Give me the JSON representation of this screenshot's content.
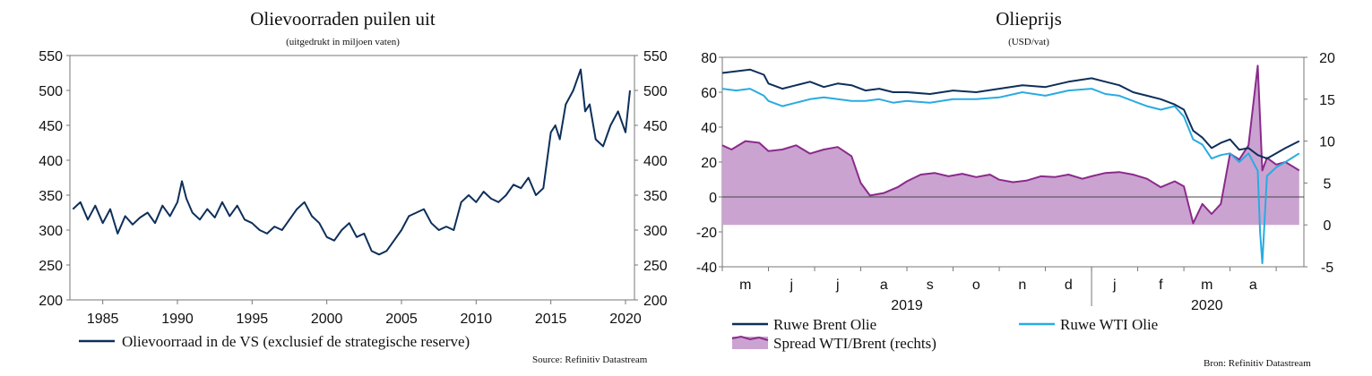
{
  "chart_data": [
    {
      "type": "line",
      "title": "Olievoorraden puilen uit",
      "subtitle": "(uitgedrukt in miljoen vaten)",
      "ylim": [
        200,
        550
      ],
      "y_ticks": [
        200,
        250,
        300,
        350,
        400,
        450,
        500,
        550
      ],
      "x_ticks": [
        "1985",
        "1990",
        "1995",
        "2000",
        "2005",
        "2010",
        "2015",
        "2020"
      ],
      "xlim": [
        1982.8,
        2020.6
      ],
      "series": [
        {
          "name": "Olievoorraad in de VS (exclusief de strategische reserve)",
          "color": "#0d2f5a",
          "x": [
            1983,
            1983.5,
            1984,
            1984.5,
            1985,
            1985.5,
            1986,
            1986.5,
            1987,
            1987.5,
            1988,
            1988.5,
            1989,
            1989.5,
            1990,
            1990.3,
            1990.6,
            1991,
            1991.5,
            1992,
            1992.5,
            1993,
            1993.5,
            1994,
            1994.5,
            1995,
            1995.5,
            1996,
            1996.5,
            1997,
            1997.5,
            1998,
            1998.5,
            1999,
            1999.5,
            2000,
            2000.5,
            2001,
            2001.5,
            2002,
            2002.5,
            2003,
            2003.5,
            2004,
            2004.5,
            2005,
            2005.5,
            2006,
            2006.5,
            2007,
            2007.5,
            2008,
            2008.5,
            2009,
            2009.5,
            2010,
            2010.5,
            2011,
            2011.5,
            2012,
            2012.5,
            2013,
            2013.5,
            2014,
            2014.5,
            2015,
            2015.3,
            2015.6,
            2016,
            2016.5,
            2017,
            2017.3,
            2017.6,
            2018,
            2018.5,
            2019,
            2019.5,
            2020,
            2020.3
          ],
          "values": [
            330,
            340,
            315,
            335,
            310,
            330,
            295,
            320,
            308,
            318,
            325,
            310,
            335,
            320,
            340,
            370,
            345,
            325,
            315,
            330,
            318,
            340,
            320,
            335,
            315,
            310,
            300,
            295,
            305,
            300,
            315,
            330,
            340,
            320,
            310,
            290,
            285,
            300,
            310,
            290,
            295,
            270,
            265,
            270,
            285,
            300,
            320,
            325,
            330,
            310,
            300,
            305,
            300,
            340,
            350,
            340,
            355,
            345,
            340,
            350,
            365,
            360,
            375,
            350,
            360,
            440,
            450,
            430,
            480,
            500,
            530,
            470,
            480,
            430,
            420,
            450,
            470,
            440,
            500
          ]
        }
      ],
      "legend_position": "bottom",
      "source": "Source: Refinitiv Datastream"
    },
    {
      "type": "line",
      "title": "Olieprijs",
      "subtitle": "(USD/vat)",
      "ylim": [
        -40,
        80
      ],
      "y_ticks": [
        -40,
        -20,
        0,
        20,
        40,
        60,
        80
      ],
      "y2lim": [
        -5,
        20
      ],
      "y2_ticks": [
        -5,
        0,
        5,
        10,
        15,
        20
      ],
      "x_month_labels": [
        "m",
        "j",
        "j",
        "a",
        "s",
        "o",
        "n",
        "d",
        "j",
        "f",
        "m",
        "a"
      ],
      "x_year_labels": [
        "2019",
        "2020"
      ],
      "xlim": [
        0,
        12.6
      ],
      "x_unit": "months since start of May 2019",
      "series": [
        {
          "name": "Ruwe Brent Olie",
          "color": "#0d2f5a",
          "axis": "left",
          "x": [
            0,
            0.3,
            0.6,
            0.9,
            1.0,
            1.3,
            1.6,
            1.9,
            2.2,
            2.5,
            2.8,
            3.1,
            3.4,
            3.7,
            4.0,
            4.5,
            5.0,
            5.5,
            6.0,
            6.5,
            7.0,
            7.5,
            8.0,
            8.3,
            8.6,
            8.9,
            9.2,
            9.5,
            9.8,
            10.0,
            10.2,
            10.4,
            10.6,
            10.8,
            11.0,
            11.2,
            11.4,
            11.6,
            11.8,
            12.0,
            12.2,
            12.5
          ],
          "values": [
            71,
            72,
            73,
            70,
            65,
            62,
            64,
            66,
            63,
            65,
            64,
            61,
            62,
            60,
            60,
            59,
            61,
            60,
            62,
            64,
            63,
            66,
            68,
            66,
            64,
            60,
            58,
            56,
            53,
            50,
            38,
            34,
            28,
            31,
            33,
            27,
            28,
            24,
            22,
            25,
            28,
            32
          ]
        },
        {
          "name": "Ruwe WTI Olie",
          "color": "#29abe2",
          "axis": "left",
          "x": [
            0,
            0.3,
            0.6,
            0.9,
            1.0,
            1.3,
            1.6,
            1.9,
            2.2,
            2.5,
            2.8,
            3.1,
            3.4,
            3.7,
            4.0,
            4.5,
            5.0,
            5.5,
            6.0,
            6.5,
            7.0,
            7.5,
            8.0,
            8.3,
            8.6,
            8.9,
            9.2,
            9.5,
            9.8,
            10.0,
            10.2,
            10.4,
            10.6,
            10.8,
            11.0,
            11.2,
            11.4,
            11.6,
            11.65,
            11.7,
            11.8,
            12.0,
            12.2,
            12.5
          ],
          "values": [
            62,
            61,
            62,
            58,
            55,
            52,
            54,
            56,
            57,
            56,
            55,
            55,
            56,
            54,
            55,
            54,
            56,
            56,
            57,
            60,
            58,
            61,
            62,
            59,
            58,
            55,
            52,
            50,
            52,
            46,
            33,
            30,
            22,
            24,
            25,
            20,
            25,
            15,
            -20,
            -38,
            12,
            17,
            20,
            25
          ]
        },
        {
          "name": "Spread WTI/Brent (rechts)",
          "color": "#8b2a8b",
          "fill": "#cba3d1",
          "axis": "right",
          "x": [
            0,
            0.2,
            0.5,
            0.8,
            1.0,
            1.3,
            1.6,
            1.9,
            2.2,
            2.5,
            2.8,
            3.0,
            3.2,
            3.5,
            3.8,
            4.0,
            4.3,
            4.6,
            4.9,
            5.2,
            5.5,
            5.8,
            6.0,
            6.3,
            6.6,
            6.9,
            7.2,
            7.5,
            7.8,
            8.0,
            8.3,
            8.6,
            8.9,
            9.2,
            9.5,
            9.8,
            10.0,
            10.2,
            10.4,
            10.6,
            10.8,
            11.0,
            11.2,
            11.4,
            11.6,
            11.7,
            11.8,
            12.0,
            12.2,
            12.5
          ],
          "values": [
            9.5,
            9,
            10,
            9.8,
            8.8,
            9,
            9.5,
            8.5,
            9,
            9.3,
            8.2,
            5,
            3.5,
            3.8,
            4.5,
            5.2,
            6,
            6.2,
            5.8,
            6.1,
            5.7,
            6,
            5.4,
            5.1,
            5.3,
            5.8,
            5.7,
            6,
            5.5,
            5.8,
            6.2,
            6.3,
            6,
            5.5,
            4.5,
            5.2,
            4.6,
            0.2,
            2.5,
            1.3,
            2.5,
            8.5,
            7.8,
            9.5,
            19,
            6.5,
            8,
            7.2,
            7.5,
            6.5
          ]
        }
      ],
      "spread_fill_baseline": 0,
      "legend_position": "bottom",
      "source": "Bron: Refinitiv Datastream"
    }
  ]
}
